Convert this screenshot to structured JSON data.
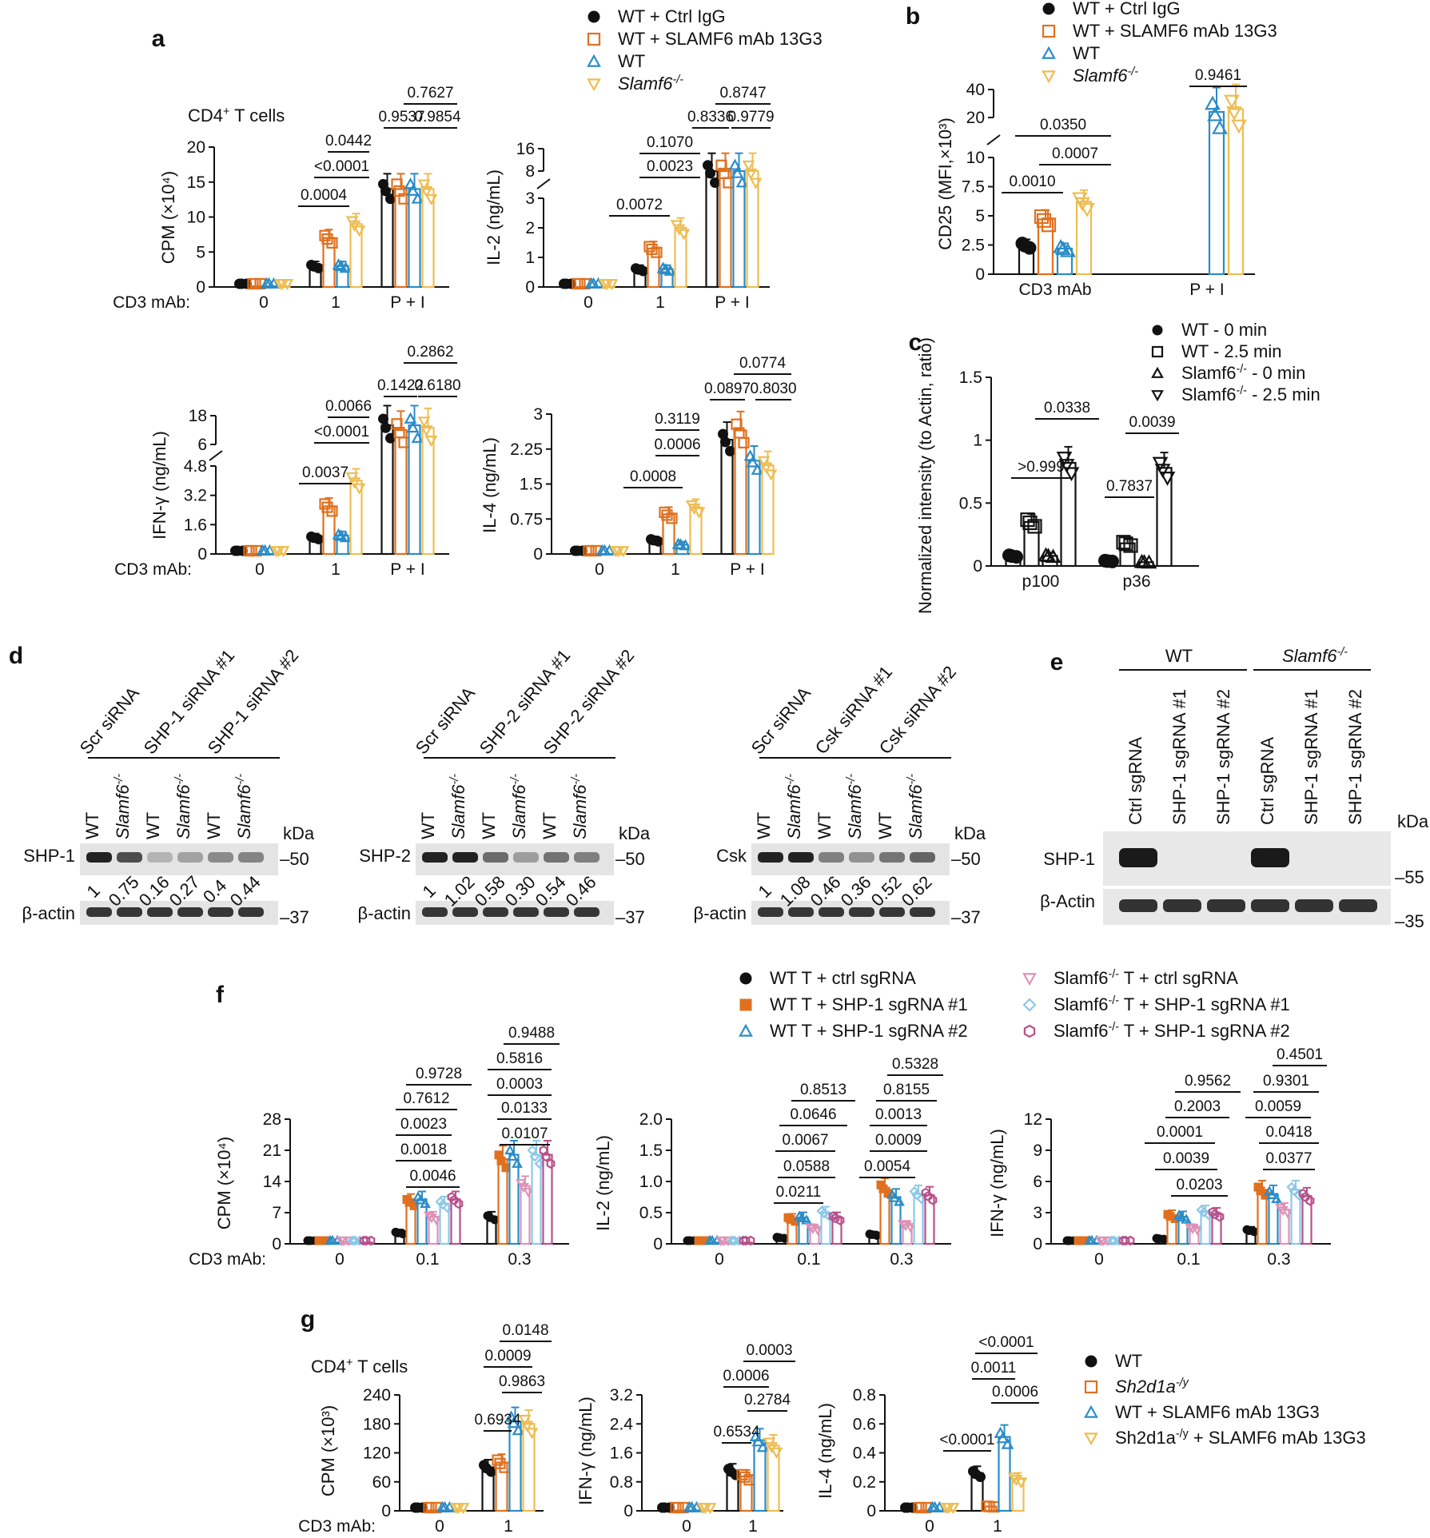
{
  "colors": {
    "black": "#111111",
    "orange": "#e0701e",
    "blue": "#2a8cc8",
    "yellow": "#eebd52",
    "pink": "#dd93b6",
    "lightblue": "#8cc8e8",
    "magenta": "#b8508a"
  },
  "panel_labels": [
    "a",
    "b",
    "c",
    "d",
    "e",
    "f",
    "g"
  ],
  "legends": {
    "a": [
      {
        "label": "WT + Ctrl IgG",
        "italic": false
      },
      {
        "label": "WT + SLAMF6 mAb 13G3",
        "italic": false
      },
      {
        "label": "WT",
        "italic": false
      },
      {
        "label": "Slamf6-/-",
        "italic": true
      }
    ],
    "b": [
      {
        "label": "WT + Ctrl IgG",
        "italic": false
      },
      {
        "label": "WT + SLAMF6 mAb 13G3",
        "italic": false
      },
      {
        "label": "WT",
        "italic": false
      },
      {
        "label": "Slamf6-/-",
        "italic": true
      }
    ],
    "c": [
      {
        "label": "WT - 0 min",
        "italic": false
      },
      {
        "label": "WT - 2.5 min",
        "italic": false
      },
      {
        "label": "Slamf6-/- - 0 min",
        "italic": false
      },
      {
        "label": "Slamf6-/- - 2.5 min",
        "italic": false
      }
    ],
    "f": [
      {
        "label": "WT T + ctrl sgRNA",
        "italic": false
      },
      {
        "label": "WT T + SHP-1 sgRNA #1",
        "italic": false
      },
      {
        "label": "WT T + SHP-1 sgRNA #2",
        "italic": false
      },
      {
        "label": "Slamf6-/- T + ctrl sgRNA",
        "italic": false
      },
      {
        "label": "Slamf6-/- T + SHP-1 sgRNA #1",
        "italic": false
      },
      {
        "label": "Slamf6-/- T + SHP-1 sgRNA #2",
        "italic": false
      }
    ],
    "g": [
      {
        "label": "WT",
        "italic": false
      },
      {
        "label": "Sh2d1a-/y",
        "italic": true
      },
      {
        "label": "WT + SLAMF6 mAb 13G3",
        "italic": false
      },
      {
        "label": "Sh2d1a-/y + SLAMF6 mAb 13G3",
        "italic": false
      }
    ]
  },
  "chart_data": [
    {
      "id": "a1",
      "type": "bar",
      "subtitle": "CD4+ T cells",
      "ylabel": "CPM (×10⁴)",
      "xprefix": "CD3 mAb:",
      "categories": [
        "0",
        "1",
        "P + I"
      ],
      "ylim": [
        0,
        20
      ],
      "yticks": [
        "0",
        "5",
        "10",
        "15",
        "20"
      ],
      "series": [
        {
          "name": "WT + Ctrl IgG",
          "values": [
            0.1,
            3,
            14
          ]
        },
        {
          "name": "WT + SLAMF6 mAb 13G3",
          "values": [
            0.1,
            7,
            14
          ]
        },
        {
          "name": "WT",
          "values": [
            0.1,
            3,
            14
          ]
        },
        {
          "name": "Slamf6-/-",
          "values": [
            0.1,
            9,
            14
          ]
        }
      ],
      "pvalues": [
        "0.0004",
        "<0.0001",
        "0.0442",
        "0.9537",
        "0.7627",
        "0.9854"
      ]
    },
    {
      "id": "a2",
      "type": "bar",
      "ylabel": "IL-2 (ng/mL)",
      "categories": [
        "0",
        "1",
        "P + I"
      ],
      "yticks": [
        "0",
        "1",
        "2",
        "3",
        "8",
        "16"
      ],
      "series": [
        {
          "name": "WT + Ctrl IgG",
          "values": [
            0,
            0.6,
            8
          ]
        },
        {
          "name": "WT + SLAMF6 mAb 13G3",
          "values": [
            0,
            1.3,
            8
          ]
        },
        {
          "name": "WT",
          "values": [
            0,
            0.6,
            8
          ]
        },
        {
          "name": "Slamf6-/-",
          "values": [
            0,
            2.0,
            8
          ]
        }
      ],
      "pvalues": [
        "0.0072",
        "0.0023",
        "0.1070",
        "0.8336",
        "0.8747",
        "0.9779"
      ]
    },
    {
      "id": "a3",
      "type": "bar",
      "ylabel": "IFN-γ (ng/mL)",
      "xprefix": "CD3 mAb:",
      "categories": [
        "0",
        "1",
        "P + I"
      ],
      "yticks": [
        "0",
        "1.6",
        "3.2",
        "4.8",
        "6",
        "18"
      ],
      "series": [
        {
          "name": "WT + Ctrl IgG",
          "values": [
            0,
            0.9,
            14
          ]
        },
        {
          "name": "WT + SLAMF6 mAb 13G3",
          "values": [
            0,
            2.6,
            12
          ]
        },
        {
          "name": "WT",
          "values": [
            0,
            1.0,
            14
          ]
        },
        {
          "name": "Slamf6-/-",
          "values": [
            0,
            4.0,
            13
          ]
        }
      ],
      "pvalues": [
        "0.0037",
        "<0.0001",
        "0.0066",
        "0.1422",
        "0.2862",
        "0.6180"
      ]
    },
    {
      "id": "a4",
      "type": "bar",
      "ylabel": "IL-4 (ng/mL)",
      "categories": [
        "0",
        "1",
        "P + I"
      ],
      "ylim": [
        0,
        3
      ],
      "yticks": [
        "0",
        "0.75",
        "1.5",
        "2.25",
        "3"
      ],
      "series": [
        {
          "name": "WT + Ctrl IgG",
          "values": [
            0,
            0.3,
            2.45
          ]
        },
        {
          "name": "WT + SLAMF6 mAb 13G3",
          "values": [
            0,
            0.85,
            2.65
          ]
        },
        {
          "name": "WT",
          "values": [
            0,
            0.2,
            2.0
          ]
        },
        {
          "name": "Slamf6-/-",
          "values": [
            0,
            1.0,
            1.9
          ]
        }
      ],
      "pvalues": [
        "0.0008",
        "0.0006",
        "0.3119",
        "0.0897",
        "0.0774",
        "0.8030"
      ]
    },
    {
      "id": "b",
      "type": "bar",
      "ylabel": "CD25 (MFI,×10³)",
      "categories": [
        "CD3 mAb",
        "P + I"
      ],
      "yticks": [
        "0",
        "2.5",
        "5",
        "7.5",
        "10",
        "20",
        "40"
      ],
      "series": [
        {
          "name": "WT + Ctrl IgG",
          "values": [
            2.5,
            null
          ]
        },
        {
          "name": "WT + SLAMF6 mAb 13G3",
          "values": [
            4.7,
            null
          ]
        },
        {
          "name": "WT",
          "values": [
            2.2,
            24
          ]
        },
        {
          "name": "Slamf6-/-",
          "values": [
            6.2,
            26
          ]
        }
      ],
      "pvalues": [
        "0.0010",
        "0.0007",
        "0.0350",
        "0.9461"
      ]
    },
    {
      "id": "c",
      "type": "bar",
      "ylabel": "Normalized intensity (to Actin, ratio)",
      "categories": [
        "p100",
        "p36"
      ],
      "ylim": [
        0,
        1.5
      ],
      "yticks": [
        "0",
        "0.5",
        "1",
        "1.5"
      ],
      "series": [
        {
          "name": "WT - 0 min",
          "values": [
            0.08,
            0.04
          ]
        },
        {
          "name": "WT - 2.5 min",
          "values": [
            0.35,
            0.18
          ]
        },
        {
          "name": "Slamf6-/- - 0 min",
          "values": [
            0.08,
            0.03
          ]
        },
        {
          "name": "Slamf6-/- - 2.5 min",
          "values": [
            0.82,
            0.78
          ]
        }
      ],
      "pvalues": [
        ">0.999",
        "0.0338",
        "0.7837",
        "0.0039"
      ]
    },
    {
      "id": "f1",
      "type": "bar",
      "ylabel": "CPM (×10⁴)",
      "xprefix": "CD3 mAb:",
      "categories": [
        "0",
        "0.1",
        "0.3"
      ],
      "ylim": [
        0,
        28
      ],
      "yticks": [
        "0",
        "7",
        "14",
        "21",
        "28"
      ],
      "series": [
        {
          "name": "WT T + ctrl sgRNA",
          "values": [
            0.3,
            2.5,
            6
          ]
        },
        {
          "name": "WT T + SHP-1 sgRNA #1",
          "values": [
            0.3,
            9.5,
            19
          ]
        },
        {
          "name": "WT T + SHP-1 sgRNA #2",
          "values": [
            0.3,
            10,
            20
          ]
        },
        {
          "name": "Slamf6-/- T + ctrl sgRNA",
          "values": [
            0.3,
            6,
            13
          ]
        },
        {
          "name": "Slamf6-/- T + SHP-1 sgRNA #1",
          "values": [
            0.3,
            9,
            20
          ]
        },
        {
          "name": "Slamf6-/- T + SHP-1 sgRNA #2",
          "values": [
            0.3,
            10,
            20
          ]
        }
      ],
      "pvalues": [
        "0.0046",
        "0.0018",
        "0.0023",
        "0.7612",
        "0.9728",
        "0.0107",
        "0.0133",
        "0.0003",
        "0.5816",
        "0.9488"
      ]
    },
    {
      "id": "f2",
      "type": "bar",
      "ylabel": "IL-2 (ng/mL)",
      "categories": [
        "0",
        "0.1",
        "0.3"
      ],
      "ylim": [
        0,
        2.0
      ],
      "yticks": [
        "0",
        "0.5",
        "1.0",
        "1.5",
        "2.0"
      ],
      "series": [
        {
          "name": "WT T + ctrl sgRNA",
          "values": [
            0.02,
            0.1,
            0.15
          ]
        },
        {
          "name": "WT T + SHP-1 sgRNA #1",
          "values": [
            0.02,
            0.4,
            0.9
          ]
        },
        {
          "name": "WT T + SHP-1 sgRNA #2",
          "values": [
            0.02,
            0.42,
            0.75
          ]
        },
        {
          "name": "Slamf6-/- T + ctrl sgRNA",
          "values": [
            0.02,
            0.25,
            0.3
          ]
        },
        {
          "name": "Slamf6-/- T + SHP-1 sgRNA #1",
          "values": [
            0.02,
            0.5,
            0.8
          ]
        },
        {
          "name": "Slamf6-/- T + SHP-1 sgRNA #2",
          "values": [
            0.02,
            0.42,
            0.78
          ]
        }
      ],
      "pvalues": [
        "0.0211",
        "0.0588",
        "0.0067",
        "0.0646",
        "0.8513",
        "0.0054",
        "0.0009",
        "0.0013",
        "0.8155",
        "0.5328"
      ]
    },
    {
      "id": "f3",
      "type": "bar",
      "ylabel": "IFN-γ (ng/mL)",
      "categories": [
        "0",
        "0.1",
        "0.3"
      ],
      "ylim": [
        0,
        12
      ],
      "yticks": [
        "0",
        "3",
        "6",
        "9",
        "12"
      ],
      "series": [
        {
          "name": "WT T + ctrl sgRNA",
          "values": [
            0.05,
            0.5,
            1.3
          ]
        },
        {
          "name": "WT T + SHP-1 sgRNA #1",
          "values": [
            0.05,
            2.7,
            5.2
          ]
        },
        {
          "name": "WT T + SHP-1 sgRNA #2",
          "values": [
            0.05,
            2.6,
            4.8
          ]
        },
        {
          "name": "Slamf6-/- T + ctrl sgRNA",
          "values": [
            0.05,
            1.5,
            3.3
          ]
        },
        {
          "name": "Slamf6-/- T + SHP-1 sgRNA #1",
          "values": [
            0.05,
            3.1,
            5.2
          ]
        },
        {
          "name": "Slamf6-/- T + SHP-1 sgRNA #2",
          "values": [
            0.05,
            2.9,
            4.6
          ]
        }
      ],
      "pvalues": [
        "0.0203",
        "0.0039",
        "0.0001",
        "0.2003",
        "0.9562",
        "0.0377",
        "0.0418",
        "0.0059",
        "0.9301",
        "0.4501"
      ]
    },
    {
      "id": "g1",
      "type": "bar",
      "subtitle": "CD4+ T cells",
      "ylabel": "CPM (×10³)",
      "xprefix": "CD3 mAb:",
      "categories": [
        "0",
        "1"
      ],
      "ylim": [
        0,
        240
      ],
      "yticks": [
        "0",
        "60",
        "120",
        "180",
        "240"
      ],
      "series": [
        {
          "name": "WT",
          "values": [
            1,
            90
          ]
        },
        {
          "name": "Sh2d1a-/y",
          "values": [
            1,
            100
          ]
        },
        {
          "name": "WT + SLAMF6 mAb 13G3",
          "values": [
            1,
            185
          ]
        },
        {
          "name": "Sh2d1a-/y + SLAMF6 mAb 13G3",
          "values": [
            1,
            180
          ]
        }
      ],
      "pvalues": [
        "0.6934",
        "0.9863",
        "0.0009",
        "0.0148"
      ]
    },
    {
      "id": "g2",
      "type": "bar",
      "ylabel": "IFN-γ (ng/mL)",
      "categories": [
        "0",
        "1"
      ],
      "ylim": [
        0,
        3.2
      ],
      "yticks": [
        "0",
        "0.8",
        "1.6",
        "2.4",
        "3.2"
      ],
      "series": [
        {
          "name": "WT",
          "values": [
            0.01,
            1.1
          ]
        },
        {
          "name": "Sh2d1a-/y",
          "values": [
            0.01,
            0.95
          ]
        },
        {
          "name": "WT + SLAMF6 mAb 13G3",
          "values": [
            0.01,
            1.95
          ]
        },
        {
          "name": "Sh2d1a-/y + SLAMF6 mAb 13G3",
          "values": [
            0.01,
            1.8
          ]
        }
      ],
      "pvalues": [
        "0.6534",
        "0.2784",
        "0.0006",
        "0.0003"
      ]
    },
    {
      "id": "g3",
      "type": "bar",
      "ylabel": "IL-4 (ng/mL)",
      "categories": [
        "0",
        "1"
      ],
      "ylim": [
        0,
        0.8
      ],
      "yticks": [
        "0",
        "0.2",
        "0.4",
        "0.6",
        "0.8"
      ],
      "series": [
        {
          "name": "WT",
          "values": [
            0.002,
            0.26
          ]
        },
        {
          "name": "Sh2d1a-/y",
          "values": [
            0.002,
            0.03
          ]
        },
        {
          "name": "WT + SLAMF6 mAb 13G3",
          "values": [
            0.002,
            0.51
          ]
        },
        {
          "name": "Sh2d1a-/y + SLAMF6 mAb 13G3",
          "values": [
            0.002,
            0.22
          ]
        }
      ],
      "pvalues": [
        "<0.0001",
        "0.0006",
        "0.0011",
        "<0.0001"
      ]
    }
  ],
  "blots": {
    "d": [
      {
        "groups": [
          "Scr siRNA",
          "SHP-1 siRNA #1",
          "SHP-1 siRNA #2"
        ],
        "lanes": [
          "WT",
          "Slamf6-/-",
          "WT",
          "Slamf6-/-",
          "WT",
          "Slamf6-/-"
        ],
        "band": "SHP-1",
        "control": "β-actin",
        "ratios": [
          "1",
          "0.75",
          "0.16",
          "0.27",
          "0.4",
          "0.44"
        ],
        "markers": [
          "kDa",
          "–50",
          "–37"
        ]
      },
      {
        "groups": [
          "Scr siRNA",
          "SHP-2 siRNA #1",
          "SHP-2 siRNA #2"
        ],
        "lanes": [
          "WT",
          "Slamf6-/-",
          "WT",
          "Slamf6-/-",
          "WT",
          "Slamf6-/-"
        ],
        "band": "SHP-2",
        "control": "β-actin",
        "ratios": [
          "1",
          "1.02",
          "0.58",
          "0.30",
          "0.54",
          "0.46"
        ],
        "markers": [
          "kDa",
          "–50",
          "–37"
        ]
      },
      {
        "groups": [
          "Scr siRNA",
          "Csk siRNA #1",
          "Csk siRNA #2"
        ],
        "lanes": [
          "WT",
          "Slamf6-/-",
          "WT",
          "Slamf6-/-",
          "WT",
          "Slamf6-/-"
        ],
        "band": "Csk",
        "control": "β-actin",
        "ratios": [
          "1",
          "1.08",
          "0.46",
          "0.36",
          "0.52",
          "0.62"
        ],
        "markers": [
          "kDa",
          "–50",
          "–37"
        ]
      }
    ],
    "e": {
      "groups": [
        "WT",
        "Slamf6-/-"
      ],
      "lanes": [
        "Ctrl sgRNA",
        "SHP-1 sgRNA #1",
        "SHP-1 sgRNA #2",
        "Ctrl sgRNA",
        "SHP-1 sgRNA #1",
        "SHP-1 sgRNA #2"
      ],
      "band": "SHP-1",
      "control": "β-Actin",
      "markers": [
        "kDa",
        "–55",
        "–35"
      ]
    }
  }
}
